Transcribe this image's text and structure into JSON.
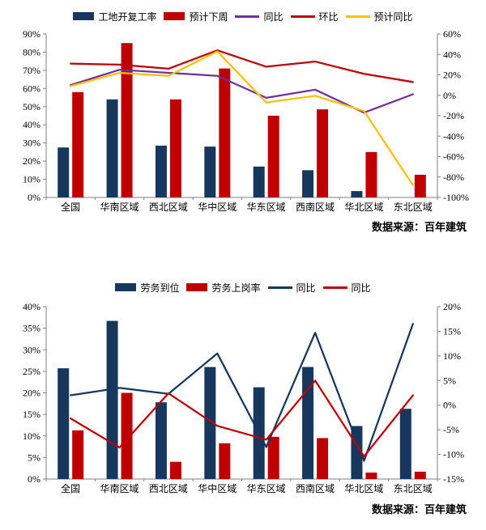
{
  "chart_data": [
    {
      "type": "bar+line",
      "categories": [
        "全国",
        "华南区域",
        "西北区域",
        "华中区域",
        "华东区域",
        "西南区域",
        "华北区域",
        "东北区域"
      ],
      "bar_series": [
        {
          "name": "工地开复工率",
          "color": "#17375D",
          "axis": "left",
          "values": [
            27.5,
            54,
            28.5,
            28,
            17,
            15,
            3.5,
            0
          ]
        },
        {
          "name": "预计下周",
          "color": "#C00000",
          "axis": "left",
          "values": [
            58,
            85,
            54,
            71,
            45,
            48.5,
            25,
            12.5
          ]
        }
      ],
      "line_series": [
        {
          "name": "同比",
          "color": "#7030A0",
          "axis": "right",
          "values": [
            10,
            25,
            22,
            19,
            -2.5,
            5.5,
            -17,
            1
          ]
        },
        {
          "name": "环比",
          "color": "#C00000",
          "axis": "right",
          "values": [
            31,
            30,
            26,
            44,
            28,
            33,
            21,
            13
          ]
        },
        {
          "name": "预计同比",
          "color": "#FFC000",
          "axis": "right",
          "values": [
            9,
            22,
            19,
            43,
            -7,
            -0.5,
            -15.5,
            -88
          ]
        }
      ],
      "left_axis": {
        "min": 0,
        "max": 90,
        "step": 10,
        "suffix": "%"
      },
      "right_axis": {
        "min": -100,
        "max": 60,
        "step": 20,
        "suffix": "%"
      },
      "grid": false,
      "legend_position": "top",
      "source": "数据来源：百年建筑"
    },
    {
      "type": "bar+line",
      "categories": [
        "全国",
        "华南区域",
        "西北区域",
        "华中区域",
        "华东区域",
        "西南区域",
        "华北区域",
        "东北区域"
      ],
      "bar_series": [
        {
          "name": "劳务到位",
          "color": "#17375D",
          "axis": "left",
          "values": [
            25.7,
            36.7,
            17.8,
            26,
            21.3,
            26,
            12.3,
            16.3
          ]
        },
        {
          "name": "劳务上岗率",
          "color": "#C00000",
          "axis": "left",
          "values": [
            11.3,
            20,
            4,
            8.3,
            9.8,
            9.5,
            1.5,
            1.7
          ]
        }
      ],
      "line_series": [
        {
          "name": "同比",
          "color": "#17375D",
          "axis": "right",
          "values": [
            2,
            3.5,
            2.3,
            10.5,
            -8.5,
            14.7,
            -11.3,
            16.5
          ]
        },
        {
          "name": "同比",
          "color": "#C00000",
          "axis": "right",
          "values": [
            -2.7,
            -8.6,
            2.4,
            -4.2,
            -7,
            5,
            -10.4,
            2
          ]
        }
      ],
      "left_axis": {
        "min": 0,
        "max": 40,
        "step": 5,
        "suffix": "%"
      },
      "right_axis": {
        "min": -15,
        "max": 20,
        "step": 5,
        "suffix": "%"
      },
      "grid": false,
      "legend_position": "top",
      "source": "数据来源：百年建筑"
    }
  ],
  "colors": {
    "bar_navy": "#17375D",
    "bar_red": "#C00000",
    "line_purple": "#7030A0",
    "line_red": "#C00000",
    "line_yellow": "#FFC000",
    "line_navy": "#17375D",
    "axis": "#808080",
    "text": "#000000"
  }
}
